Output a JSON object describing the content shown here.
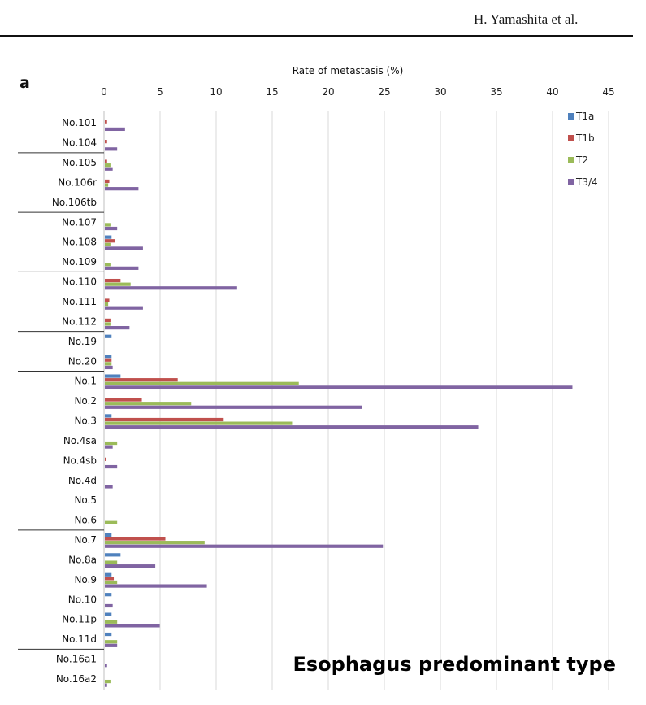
{
  "header": {
    "author": "H. Yamashita et al."
  },
  "chart_data": {
    "type": "bar",
    "orientation": "horizontal",
    "panel_label": "a",
    "title": "",
    "xlabel": "Rate of metastasis (%)",
    "ylabel": "",
    "xlim": [
      0,
      45
    ],
    "xticks": [
      0,
      5,
      10,
      15,
      20,
      25,
      30,
      35,
      40,
      45
    ],
    "grid": "vertical",
    "legend_position": "top-right",
    "annotation": "Esophagus predominant type",
    "categories": [
      "No.101",
      "No.104",
      "No.105",
      "No.106r",
      "No.106tb",
      "No.107",
      "No.108",
      "No.109",
      "No.110",
      "No.111",
      "No.112",
      "No.19",
      "No.20",
      "No.1",
      "No.2",
      "No.3",
      "No.4sa",
      "No.4sb",
      "No.4d",
      "No.5",
      "No.6",
      "No.7",
      "No.8a",
      "No.9",
      "No.10",
      "No.11p",
      "No.11d",
      "No.16a1",
      "No.16a2"
    ],
    "group_separators_before": [
      "No.105",
      "No.107",
      "No.110",
      "No.19",
      "No.1",
      "No.7",
      "No.16a1"
    ],
    "series": [
      {
        "name": "T1a",
        "color": "#4f81bd",
        "values": [
          0,
          0,
          0,
          0,
          0,
          0,
          0.6,
          0,
          0,
          0,
          0,
          0.6,
          0.6,
          1.4,
          0,
          0.6,
          0,
          0,
          0,
          0,
          0,
          0.6,
          1.4,
          0.6,
          0.6,
          0.6,
          0.6,
          0,
          0
        ]
      },
      {
        "name": "T1b",
        "color": "#c0504d",
        "values": [
          0.2,
          0.2,
          0.2,
          0.4,
          0,
          0,
          0.9,
          0,
          1.4,
          0.4,
          0.5,
          0,
          0.6,
          6.5,
          3.3,
          10.6,
          0,
          0.1,
          0,
          0,
          0,
          5.4,
          0,
          0.8,
          0,
          0,
          0,
          0,
          0
        ]
      },
      {
        "name": "T2",
        "color": "#9bbb59",
        "values": [
          0,
          0,
          0.5,
          0.3,
          0,
          0.5,
          0.5,
          0.5,
          2.3,
          0.3,
          0.5,
          0,
          0.6,
          17.3,
          7.7,
          16.7,
          1.1,
          0,
          0,
          0,
          1.1,
          8.9,
          1.1,
          1.1,
          0,
          1.1,
          1.1,
          0,
          0.5
        ]
      },
      {
        "name": "T3/4",
        "color": "#8064a2",
        "values": [
          1.8,
          1.1,
          0.7,
          3.0,
          0,
          1.1,
          3.4,
          3.0,
          11.8,
          3.4,
          2.2,
          0,
          0.7,
          41.7,
          22.9,
          33.3,
          0.7,
          1.1,
          0.7,
          0,
          0,
          24.8,
          4.5,
          9.1,
          0.7,
          4.9,
          1.1,
          0.2,
          0.2
        ]
      }
    ]
  }
}
